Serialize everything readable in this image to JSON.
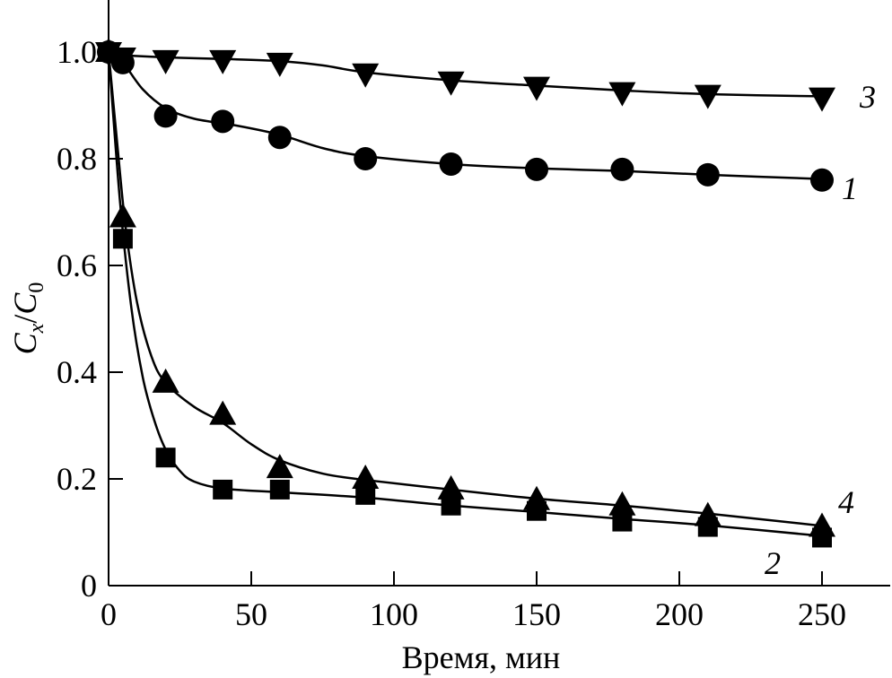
{
  "chart_data": {
    "type": "line",
    "title": "",
    "xlabel": "Время, мин",
    "ylabel": {
      "main": "C",
      "sub1": "x",
      "slash": "/",
      "main2": "C",
      "sub2": "0"
    },
    "xlim": [
      0,
      275
    ],
    "ylim": [
      0,
      1.1
    ],
    "xticks": [
      0,
      50,
      100,
      150,
      200,
      250
    ],
    "xtick_labels": [
      "0",
      "50",
      "100",
      "150",
      "200",
      "250"
    ],
    "yticks": [
      0,
      0.2,
      0.4,
      0.6,
      0.8,
      1.0
    ],
    "ytick_labels": [
      "0",
      "0.2",
      "0.4",
      "0.6",
      "0.8",
      "1.0"
    ],
    "grid": false,
    "series": [
      {
        "name": "1",
        "marker": "circle",
        "x": [
          0,
          5,
          20,
          40,
          60,
          90,
          120,
          150,
          180,
          210,
          250
        ],
        "y": [
          1.0,
          0.98,
          0.88,
          0.87,
          0.84,
          0.8,
          0.79,
          0.78,
          0.78,
          0.77,
          0.76
        ],
        "fit_x": [
          0,
          5,
          12,
          20,
          30,
          45,
          60,
          75,
          90,
          120,
          150,
          180,
          210,
          250
        ],
        "fit_y": [
          1.0,
          0.98,
          0.93,
          0.895,
          0.875,
          0.862,
          0.845,
          0.82,
          0.805,
          0.79,
          0.782,
          0.777,
          0.77,
          0.762
        ]
      },
      {
        "name": "2",
        "marker": "square",
        "x": [
          0,
          5,
          20,
          40,
          60,
          90,
          120,
          150,
          180,
          210,
          250
        ],
        "y": [
          1.0,
          0.65,
          0.24,
          0.18,
          0.18,
          0.17,
          0.15,
          0.14,
          0.12,
          0.11,
          0.09
        ],
        "fit_x": [
          0,
          4,
          8,
          12,
          16,
          20,
          25,
          30,
          40,
          60,
          90,
          120,
          150,
          180,
          210,
          250
        ],
        "fit_y": [
          1.0,
          0.72,
          0.52,
          0.39,
          0.31,
          0.255,
          0.215,
          0.195,
          0.182,
          0.175,
          0.165,
          0.15,
          0.138,
          0.125,
          0.113,
          0.093
        ]
      },
      {
        "name": "3",
        "marker": "triangle-down",
        "x": [
          0,
          5,
          20,
          40,
          60,
          90,
          120,
          150,
          180,
          210,
          250
        ],
        "y": [
          1.0,
          0.99,
          0.985,
          0.985,
          0.98,
          0.96,
          0.945,
          0.935,
          0.925,
          0.92,
          0.915
        ],
        "fit_x": [
          0,
          20,
          40,
          60,
          75,
          90,
          120,
          150,
          180,
          210,
          250
        ],
        "fit_y": [
          0.995,
          0.99,
          0.987,
          0.983,
          0.975,
          0.962,
          0.947,
          0.937,
          0.928,
          0.921,
          0.917
        ]
      },
      {
        "name": "4",
        "marker": "triangle-up",
        "x": [
          0,
          5,
          20,
          40,
          60,
          90,
          120,
          150,
          180,
          210,
          250
        ],
        "y": [
          1.0,
          0.69,
          0.38,
          0.32,
          0.22,
          0.2,
          0.18,
          0.16,
          0.15,
          0.13,
          0.11
        ],
        "fit_x": [
          0,
          3,
          6,
          10,
          15,
          20,
          30,
          40,
          50,
          60,
          75,
          90,
          120,
          150,
          180,
          210,
          250
        ],
        "fit_y": [
          1.0,
          0.83,
          0.67,
          0.53,
          0.43,
          0.38,
          0.335,
          0.305,
          0.265,
          0.235,
          0.21,
          0.198,
          0.18,
          0.163,
          0.15,
          0.135,
          0.112
        ]
      }
    ],
    "curve_labels": [
      "3",
      "1",
      "4",
      "2"
    ]
  }
}
